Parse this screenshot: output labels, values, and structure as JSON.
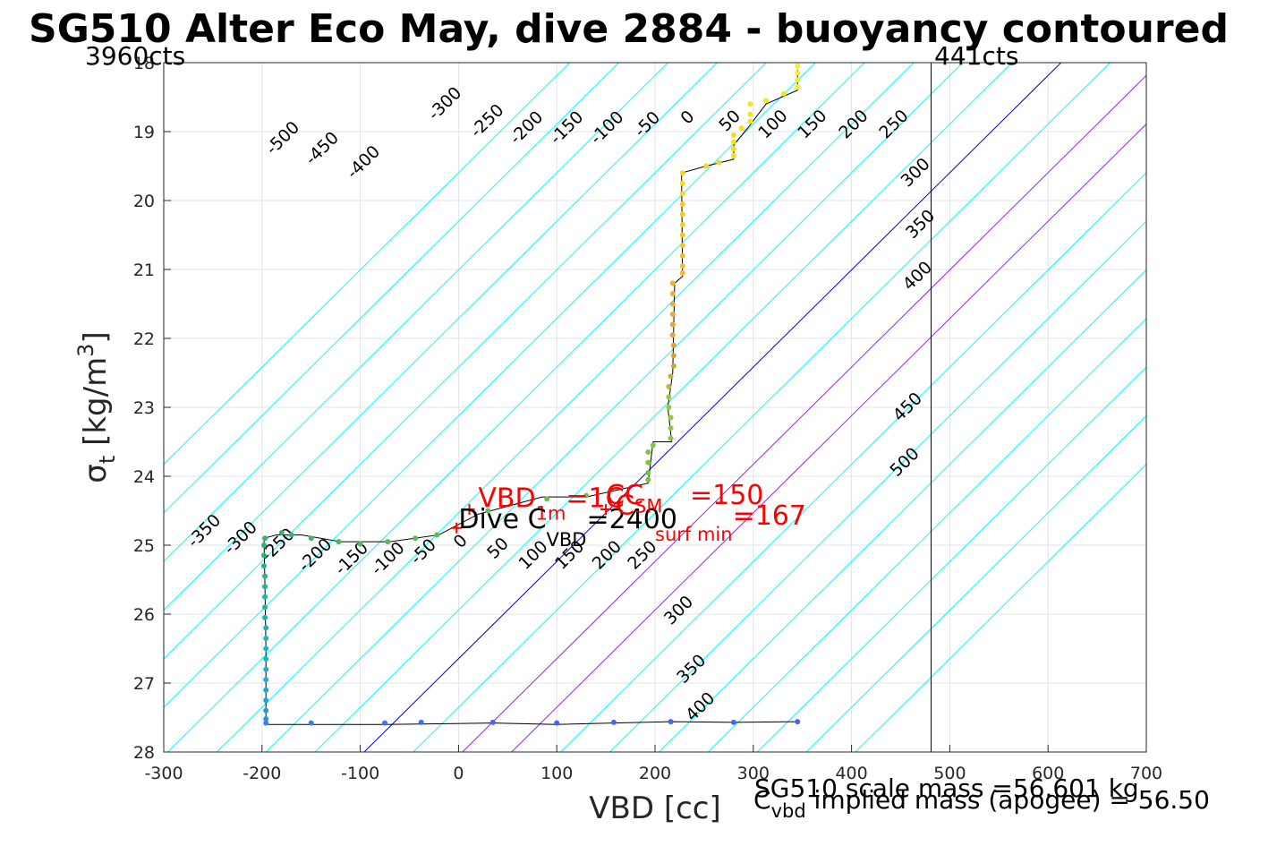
{
  "chart_data": {
    "type": "scatter",
    "title": "SG510 Alter Eco May, dive 2884 - buoyancy contoured",
    "xlabel": "VBD [cc]",
    "ylabel": {
      "base": "σ",
      "sub": "t",
      "unit_pre": " [kg/m",
      "unit_sup": "3",
      "unit_post": "]"
    },
    "xlim": [
      -300,
      700
    ],
    "ylim": [
      18,
      28
    ],
    "y_reversed": true,
    "grid": true,
    "x_ticks": [
      -300,
      -200,
      -100,
      0,
      100,
      200,
      300,
      400,
      500,
      600,
      700
    ],
    "y_ticks": [
      18,
      19,
      20,
      21,
      22,
      23,
      24,
      25,
      26,
      27,
      28
    ],
    "top_left_label": "3960cts",
    "top_right_label": "441cts",
    "vertical_line_x": 481,
    "contours": {
      "slope_per_cc": 0.0141,
      "zero_line_x_at_28": -96,
      "levels": [
        -500,
        -450,
        -400,
        -350,
        -300,
        -250,
        -200,
        -150,
        -100,
        -50,
        0,
        50,
        100,
        150,
        200,
        250,
        300,
        350,
        400,
        450,
        500
      ],
      "highlight_blue": [
        0
      ],
      "highlight_purple": [
        100,
        150
      ],
      "color_default": "#00ffff",
      "color_zero": "#0000dd",
      "color_purple": "#a020f0",
      "upper_labels": [
        {
          "level": -500,
          "x": -175,
          "y": 19.15
        },
        {
          "level": -450,
          "x": -135,
          "y": 19.3
        },
        {
          "level": -400,
          "x": -93,
          "y": 19.5
        },
        {
          "level": -300,
          "x": -10,
          "y": 18.65
        },
        {
          "level": -250,
          "x": 33,
          "y": 18.9
        },
        {
          "level": -200,
          "x": 73,
          "y": 19.0
        },
        {
          "level": -150,
          "x": 114,
          "y": 19.0
        },
        {
          "level": -100,
          "x": 155,
          "y": 19.0
        },
        {
          "level": -50,
          "x": 196,
          "y": 18.95
        },
        {
          "level": 0,
          "x": 237,
          "y": 18.85
        },
        {
          "level": 50,
          "x": 280,
          "y": 18.9
        },
        {
          "level": 100,
          "x": 324,
          "y": 18.95
        },
        {
          "level": 150,
          "x": 364,
          "y": 18.95
        },
        {
          "level": 200,
          "x": 406,
          "y": 18.95
        },
        {
          "level": 250,
          "x": 447,
          "y": 18.95
        },
        {
          "level": 300,
          "x": 469,
          "y": 19.65
        },
        {
          "level": 350,
          "x": 474,
          "y": 20.4
        },
        {
          "level": 400,
          "x": 471,
          "y": 21.15
        },
        {
          "level": 450,
          "x": 461,
          "y": 23.05
        },
        {
          "level": 500,
          "x": 458,
          "y": 23.85
        }
      ],
      "lower_labels": [
        {
          "level": -350,
          "x": -255,
          "y": 24.85
        },
        {
          "level": -300,
          "x": -218,
          "y": 24.95
        },
        {
          "level": -250,
          "x": -180,
          "y": 25.05
        },
        {
          "level": -200,
          "x": -142,
          "y": 25.2
        },
        {
          "level": -150,
          "x": -105,
          "y": 25.25
        },
        {
          "level": -100,
          "x": -68,
          "y": 25.25
        },
        {
          "level": -50,
          "x": -32,
          "y": 25.15
        },
        {
          "level": 0,
          "x": 6,
          "y": 25.0
        },
        {
          "level": 50,
          "x": 44,
          "y": 25.1
        },
        {
          "level": 100,
          "x": 80,
          "y": 25.2
        },
        {
          "level": 150,
          "x": 117,
          "y": 25.2
        },
        {
          "level": 200,
          "x": 155,
          "y": 25.2
        },
        {
          "level": 250,
          "x": 191,
          "y": 25.2
        },
        {
          "level": 300,
          "x": 228,
          "y": 26.0
        },
        {
          "level": 350,
          "x": 241,
          "y": 26.85
        },
        {
          "level": 400,
          "x": 250,
          "y": 27.4
        }
      ]
    },
    "profile": [
      [
        345,
        18.1
      ],
      [
        345,
        18.4
      ],
      [
        313,
        18.6
      ],
      [
        297,
        18.9
      ],
      [
        280,
        19.2
      ],
      [
        280,
        19.4
      ],
      [
        252,
        19.5
      ],
      [
        227,
        19.6
      ],
      [
        228,
        21.1
      ],
      [
        220,
        21.2
      ],
      [
        218,
        22.5
      ],
      [
        213,
        23.0
      ],
      [
        217,
        23.5
      ],
      [
        198,
        23.5
      ],
      [
        193,
        24.1
      ],
      [
        130,
        24.3
      ],
      [
        85,
        24.3
      ],
      [
        20,
        24.55
      ],
      [
        -20,
        24.85
      ],
      [
        -70,
        24.95
      ],
      [
        -120,
        24.95
      ],
      [
        -160,
        24.85
      ],
      [
        -185,
        24.85
      ],
      [
        -198,
        24.9
      ],
      [
        -197,
        25.6
      ],
      [
        -196,
        26.5
      ],
      [
        -196,
        27.4
      ],
      [
        -196,
        27.6
      ],
      [
        -150,
        27.6
      ],
      [
        -75,
        27.6
      ],
      [
        35,
        27.58
      ],
      [
        100,
        27.6
      ],
      [
        158,
        27.58
      ],
      [
        216,
        27.56
      ],
      [
        280,
        27.57
      ],
      [
        345,
        27.56
      ]
    ],
    "points": [
      {
        "x": 345,
        "y": 18.05,
        "c": "#f8ef1b"
      },
      {
        "x": 345,
        "y": 18.15,
        "c": "#f8ef1b"
      },
      {
        "x": 345,
        "y": 18.25,
        "c": "#f8ef1b"
      },
      {
        "x": 345,
        "y": 18.35,
        "c": "#f8ef1b"
      },
      {
        "x": 331,
        "y": 18.45,
        "c": "#f6e51f"
      },
      {
        "x": 313,
        "y": 18.55,
        "c": "#f6e51f"
      },
      {
        "x": 297,
        "y": 18.6,
        "c": "#f6e51f"
      },
      {
        "x": 297,
        "y": 18.75,
        "c": "#f6e51f"
      },
      {
        "x": 297,
        "y": 18.85,
        "c": "#f6e51f"
      },
      {
        "x": 288,
        "y": 18.95,
        "c": "#f8dc22"
      },
      {
        "x": 280,
        "y": 19.05,
        "c": "#f8dc22"
      },
      {
        "x": 280,
        "y": 19.15,
        "c": "#f8dc22"
      },
      {
        "x": 280,
        "y": 19.25,
        "c": "#f8dc22"
      },
      {
        "x": 280,
        "y": 19.35,
        "c": "#f8dc22"
      },
      {
        "x": 265,
        "y": 19.45,
        "c": "#f9d524"
      },
      {
        "x": 252,
        "y": 19.5,
        "c": "#f9d524"
      },
      {
        "x": 228,
        "y": 19.6,
        "c": "#f9d524"
      },
      {
        "x": 228,
        "y": 19.75,
        "c": "#f9d524"
      },
      {
        "x": 228,
        "y": 19.9,
        "c": "#f9d524"
      },
      {
        "x": 228,
        "y": 20.05,
        "c": "#f5cb25"
      },
      {
        "x": 228,
        "y": 20.2,
        "c": "#f5cb25"
      },
      {
        "x": 228,
        "y": 20.35,
        "c": "#f5cb25"
      },
      {
        "x": 228,
        "y": 20.5,
        "c": "#f5c627"
      },
      {
        "x": 228,
        "y": 20.65,
        "c": "#f5c627"
      },
      {
        "x": 228,
        "y": 20.8,
        "c": "#f4bc2a"
      },
      {
        "x": 228,
        "y": 20.95,
        "c": "#f4bc2a"
      },
      {
        "x": 228,
        "y": 21.05,
        "c": "#f4bc2a"
      },
      {
        "x": 218,
        "y": 21.2,
        "c": "#f1b12e"
      },
      {
        "x": 218,
        "y": 21.35,
        "c": "#f1b12e"
      },
      {
        "x": 218,
        "y": 21.5,
        "c": "#eeab30"
      },
      {
        "x": 218,
        "y": 21.65,
        "c": "#eeab30"
      },
      {
        "x": 218,
        "y": 21.8,
        "c": "#eaa733"
      },
      {
        "x": 218,
        "y": 21.95,
        "c": "#e6a535"
      },
      {
        "x": 219,
        "y": 22.1,
        "c": "#dea238"
      },
      {
        "x": 219,
        "y": 22.25,
        "c": "#d4a03a"
      },
      {
        "x": 219,
        "y": 22.4,
        "c": "#c8a83c"
      },
      {
        "x": 216,
        "y": 22.55,
        "c": "#b9b53b"
      },
      {
        "x": 214,
        "y": 22.7,
        "c": "#aebd3a"
      },
      {
        "x": 214,
        "y": 22.85,
        "c": "#a8c23a"
      },
      {
        "x": 214,
        "y": 23.0,
        "c": "#a1c43b"
      },
      {
        "x": 216,
        "y": 23.15,
        "c": "#9ac53d"
      },
      {
        "x": 216,
        "y": 23.3,
        "c": "#94c43f"
      },
      {
        "x": 216,
        "y": 23.45,
        "c": "#8fc341"
      },
      {
        "x": 198,
        "y": 23.55,
        "c": "#8ac243"
      },
      {
        "x": 193,
        "y": 23.65,
        "c": "#86c145"
      },
      {
        "x": 193,
        "y": 23.8,
        "c": "#82c046"
      },
      {
        "x": 193,
        "y": 23.95,
        "c": "#7ebf47"
      },
      {
        "x": 193,
        "y": 24.05,
        "c": "#7bbe48"
      },
      {
        "x": 130,
        "y": 24.28,
        "c": "#77bd49"
      },
      {
        "x": 90,
        "y": 24.33,
        "c": "#73bc4b"
      },
      {
        "x": 30,
        "y": 24.5,
        "c": "#6dbb4d"
      },
      {
        "x": -22,
        "y": 24.85,
        "c": "#66ba50"
      },
      {
        "x": -44,
        "y": 24.9,
        "c": "#60b952"
      },
      {
        "x": -72,
        "y": 24.95,
        "c": "#59b856"
      },
      {
        "x": -100,
        "y": 24.98,
        "c": "#52b75a"
      },
      {
        "x": -122,
        "y": 24.95,
        "c": "#4bb65d"
      },
      {
        "x": -150,
        "y": 24.9,
        "c": "#44b561"
      },
      {
        "x": -170,
        "y": 24.85,
        "c": "#3eb465"
      },
      {
        "x": -180,
        "y": 24.82,
        "c": "#37b46a"
      },
      {
        "x": -197,
        "y": 24.9,
        "c": "#30b46f"
      },
      {
        "x": -198,
        "y": 25.0,
        "c": "#2ab574"
      },
      {
        "x": -198,
        "y": 25.15,
        "c": "#26b67d"
      },
      {
        "x": -198,
        "y": 25.3,
        "c": "#22b784"
      },
      {
        "x": -197,
        "y": 25.45,
        "c": "#1fb88b"
      },
      {
        "x": -197,
        "y": 25.6,
        "c": "#1cb992"
      },
      {
        "x": -197,
        "y": 25.75,
        "c": "#1ab99a"
      },
      {
        "x": -197,
        "y": 25.9,
        "c": "#18b9a1"
      },
      {
        "x": -197,
        "y": 26.05,
        "c": "#17b9a8"
      },
      {
        "x": -196,
        "y": 26.2,
        "c": "#16b9af"
      },
      {
        "x": -196,
        "y": 26.35,
        "c": "#16b9b6"
      },
      {
        "x": -196,
        "y": 26.5,
        "c": "#16b8bd"
      },
      {
        "x": -196,
        "y": 26.65,
        "c": "#17b6c4"
      },
      {
        "x": -196,
        "y": 26.8,
        "c": "#18b3ca"
      },
      {
        "x": -196,
        "y": 26.95,
        "c": "#1aafd0"
      },
      {
        "x": -196,
        "y": 27.1,
        "c": "#1da9d6"
      },
      {
        "x": -196,
        "y": 27.25,
        "c": "#21a2dc"
      },
      {
        "x": -196,
        "y": 27.4,
        "c": "#2699e2"
      },
      {
        "x": -196,
        "y": 27.52,
        "c": "#2c8fe6"
      },
      {
        "x": -196,
        "y": 27.58,
        "c": "#3285ea"
      },
      {
        "x": -150,
        "y": 27.58,
        "c": "#377bed"
      },
      {
        "x": -75,
        "y": 27.58,
        "c": "#3b73ef"
      },
      {
        "x": -38,
        "y": 27.57,
        "c": "#3e6ef0"
      },
      {
        "x": 35,
        "y": 27.57,
        "c": "#4169f1"
      },
      {
        "x": 100,
        "y": 27.58,
        "c": "#4367f2"
      },
      {
        "x": 158,
        "y": 27.57,
        "c": "#4466f2"
      },
      {
        "x": 216,
        "y": 27.56,
        "c": "#4565f3"
      },
      {
        "x": 280,
        "y": 27.57,
        "c": "#4565f3"
      },
      {
        "x": 345,
        "y": 27.56,
        "c": "#4664f3"
      }
    ],
    "plus_markers": [
      {
        "x": -2,
        "y": 24.75,
        "c": "#ff0000"
      },
      {
        "x": 11,
        "y": 24.48,
        "c": "#ff0000"
      },
      {
        "x": 150,
        "y": 24.48,
        "c": "#ff0000"
      }
    ],
    "annotations": {
      "vbd_1m": {
        "main": "VBD",
        "sub": "1m",
        "value": "=1C",
        "x": 20,
        "y": 24.45
      },
      "dive_c": {
        "main": "Dive C",
        "sub": "VBD",
        "value": "=2400",
        "x": 0,
        "y": 24.75
      },
      "cc": {
        "main": "CC",
        "value": "=150",
        "x": 150,
        "y": 24.4
      },
      "c_sm": {
        "main": "C",
        "sub": "SM",
        "x": 160,
        "y": 24.55
      },
      "surf_min": {
        "sub": "surf min",
        "value": "=167",
        "x": 200,
        "y": 24.7
      }
    },
    "bottom_notes": {
      "scale_mass": "SG510 scale mass =56.601 kg",
      "implied_main": "C",
      "implied_sub": "vbd",
      "implied_mass": " implied mass (apogee) = 56.50"
    }
  }
}
